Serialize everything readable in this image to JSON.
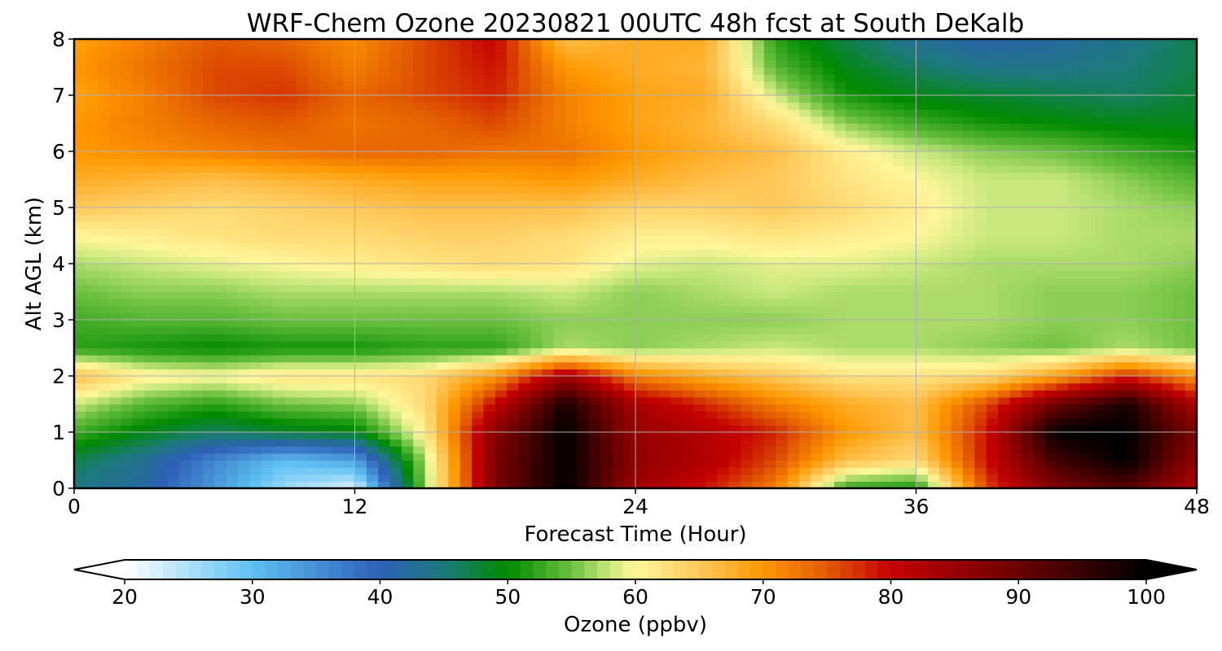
{
  "chart_data": {
    "type": "heatmap",
    "title": "WRF-Chem Ozone  20230821 00UTC 48h fcst at South DeKalb",
    "xlabel": "Forecast Time (Hour)",
    "ylabel": "Alt AGL (km)",
    "xlim": [
      0,
      48
    ],
    "ylim": [
      0,
      8
    ],
    "x_ticks": [
      "0",
      "12",
      "24",
      "36",
      "48"
    ],
    "y_ticks": [
      "0",
      "1",
      "2",
      "3",
      "4",
      "5",
      "6",
      "7",
      "8"
    ],
    "grid": true,
    "x": [
      0,
      3,
      6,
      9,
      12,
      15,
      18,
      21,
      24,
      27,
      30,
      33,
      36,
      39,
      42,
      45,
      48
    ],
    "y": [
      0,
      0.5,
      1,
      1.5,
      2,
      2.5,
      3,
      3.5,
      4,
      4.5,
      5,
      5.5,
      6,
      6.5,
      7,
      7.5,
      8
    ],
    "z": [
      [
        44,
        42,
        34,
        26,
        22,
        56,
        88,
        100,
        84,
        79,
        72,
        52,
        51,
        76,
        88,
        92,
        82
      ],
      [
        47,
        43,
        36,
        30,
        33,
        57,
        88,
        100,
        86,
        82,
        76,
        66,
        63,
        79,
        94,
        100,
        85
      ],
      [
        53,
        49,
        46,
        48,
        49,
        61,
        87,
        100,
        85,
        82,
        78,
        70,
        66,
        79,
        100,
        100,
        88
      ],
      [
        58,
        54,
        52,
        55,
        56,
        63,
        80,
        98,
        83,
        78,
        72,
        68,
        66,
        76,
        90,
        98,
        82
      ],
      [
        66,
        61,
        60,
        62,
        62,
        63,
        70,
        84,
        72,
        68,
        65,
        62,
        62,
        63,
        69,
        78,
        70
      ],
      [
        52,
        51,
        50,
        51,
        51,
        52,
        52,
        57,
        56,
        57,
        58,
        57,
        57,
        56,
        55,
        57,
        55
      ],
      [
        53,
        54,
        54,
        55,
        55,
        55,
        55,
        56,
        56,
        56,
        56,
        57,
        57,
        57,
        56,
        56,
        55
      ],
      [
        55,
        56,
        56,
        57,
        57,
        57,
        57,
        58,
        56,
        57,
        58,
        57,
        57,
        57,
        56,
        56,
        55
      ],
      [
        57,
        58,
        59,
        60,
        61,
        62,
        63,
        62,
        59,
        58,
        59,
        59,
        58,
        57,
        57,
        57,
        56
      ],
      [
        60,
        61,
        62,
        63,
        63,
        64,
        64,
        63,
        61,
        61,
        62,
        61,
        60,
        58,
        58,
        57,
        57
      ],
      [
        65,
        64,
        63,
        64,
        65,
        66,
        66,
        66,
        64,
        64,
        65,
        63,
        61,
        58,
        58,
        57,
        56
      ],
      [
        68,
        67,
        66,
        67,
        68,
        69,
        69,
        70,
        68,
        66,
        65,
        62,
        60,
        58,
        58,
        56,
        54
      ],
      [
        70,
        71,
        72,
        73,
        74,
        74,
        73,
        73,
        70,
        68,
        66,
        61,
        58,
        56,
        55,
        53,
        51
      ],
      [
        70,
        72,
        74,
        75,
        73,
        74,
        76,
        72,
        69,
        67,
        63,
        56,
        53,
        51,
        50,
        49,
        49
      ],
      [
        69,
        72,
        76,
        77,
        74,
        76,
        78,
        72,
        69,
        68,
        58,
        51,
        49,
        48,
        47,
        46,
        48
      ],
      [
        70,
        73,
        76,
        76,
        72,
        76,
        79,
        70,
        68,
        67,
        54,
        49,
        46,
        44,
        44,
        45,
        47
      ],
      [
        69,
        72,
        75,
        74,
        71,
        76,
        80,
        66,
        68,
        68,
        52,
        47,
        43,
        41,
        42,
        44,
        47
      ]
    ],
    "colorbar": {
      "label": "Ozone  (ppbv)",
      "min": 20,
      "max": 100,
      "extend": "both",
      "ticks": [
        "20",
        "30",
        "40",
        "50",
        "60",
        "70",
        "80",
        "90",
        "100"
      ],
      "colormap": [
        [
          20,
          "#ffffff"
        ],
        [
          30,
          "#5ec0f2"
        ],
        [
          40,
          "#2f5fb8"
        ],
        [
          45,
          "#1c7a7a"
        ],
        [
          50,
          "#008a00"
        ],
        [
          55,
          "#6cc040"
        ],
        [
          58,
          "#cbe87f"
        ],
        [
          60,
          "#fff69a"
        ],
        [
          65,
          "#ffc85a"
        ],
        [
          70,
          "#ff9800"
        ],
        [
          75,
          "#e25a00"
        ],
        [
          80,
          "#c40000"
        ],
        [
          90,
          "#6a0000"
        ],
        [
          100,
          "#000000"
        ]
      ]
    }
  }
}
